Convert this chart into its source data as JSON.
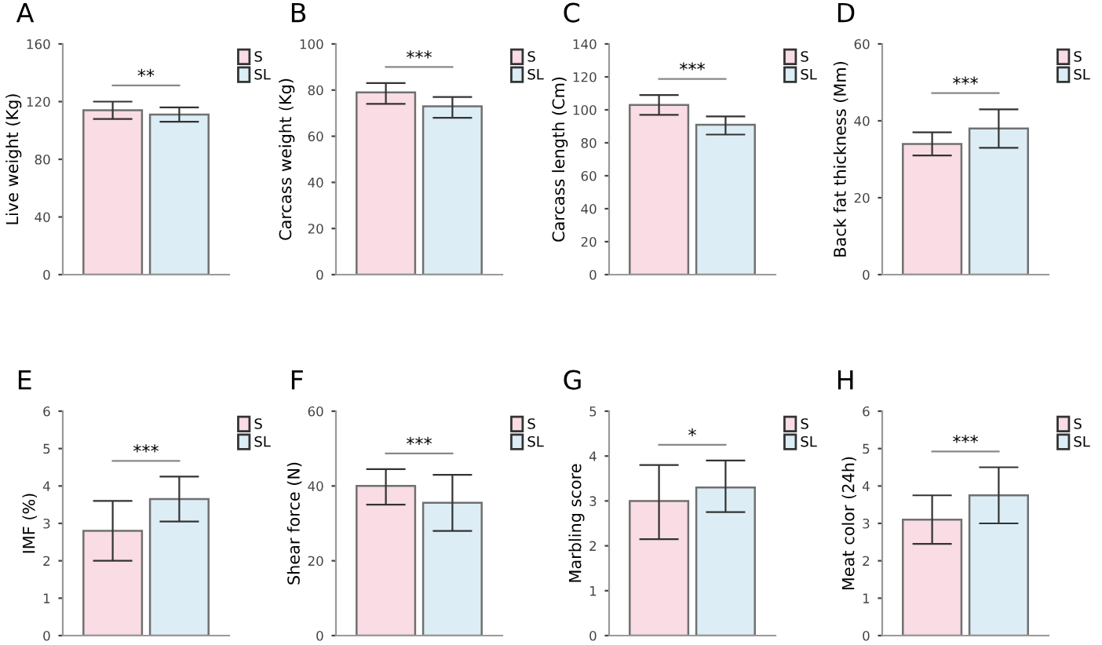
{
  "chart_data": [
    {
      "type": "bar",
      "title": "A",
      "ylabel": "Live weight (Kg)",
      "categories": [
        null
      ],
      "ylim": [
        0,
        160
      ],
      "yticks": [
        0,
        40,
        80,
        120,
        160
      ],
      "grid": false,
      "legend": "right",
      "annotations": [
        "**"
      ],
      "series": [
        {
          "name": "S",
          "color": "#f9dce4",
          "values": [
            114
          ],
          "errors": [
            [
              108,
              120
            ]
          ]
        },
        {
          "name": "SL",
          "color": "#dcedf5",
          "values": [
            111
          ],
          "errors": [
            [
              106,
              116
            ]
          ]
        }
      ]
    },
    {
      "type": "bar",
      "title": "B",
      "ylabel": "Carcass weight (Kg)",
      "categories": [
        null
      ],
      "ylim": [
        0,
        100
      ],
      "yticks": [
        0,
        20,
        40,
        60,
        80,
        100
      ],
      "grid": false,
      "legend": "right",
      "annotations": [
        "***"
      ],
      "series": [
        {
          "name": "S",
          "color": "#f9dce4",
          "values": [
            79
          ],
          "errors": [
            [
              74,
              83
            ]
          ]
        },
        {
          "name": "SL",
          "color": "#dcedf5",
          "values": [
            73
          ],
          "errors": [
            [
              68,
              77
            ]
          ]
        }
      ]
    },
    {
      "type": "bar",
      "title": "C",
      "ylabel": "Carcass length (Cm)",
      "categories": [
        null
      ],
      "ylim": [
        0,
        140
      ],
      "yticks": [
        0,
        20,
        40,
        60,
        80,
        100,
        120,
        140
      ],
      "grid": false,
      "legend": "right",
      "annotations": [
        "***"
      ],
      "series": [
        {
          "name": "S",
          "color": "#f9dce4",
          "values": [
            103
          ],
          "errors": [
            [
              97,
              109
            ]
          ]
        },
        {
          "name": "SL",
          "color": "#dcedf5",
          "values": [
            91
          ],
          "errors": [
            [
              85,
              96
            ]
          ]
        }
      ]
    },
    {
      "type": "bar",
      "title": "D",
      "ylabel": "Back fat thickness (Mm)",
      "categories": [
        null
      ],
      "ylim": [
        0,
        60
      ],
      "yticks": [
        0,
        20,
        40,
        60
      ],
      "grid": false,
      "legend": "right",
      "annotations": [
        "***"
      ],
      "series": [
        {
          "name": "S",
          "color": "#f9dce4",
          "values": [
            34
          ],
          "errors": [
            [
              31,
              37
            ]
          ]
        },
        {
          "name": "SL",
          "color": "#dcedf5",
          "values": [
            38
          ],
          "errors": [
            [
              33,
              43
            ]
          ]
        }
      ]
    },
    {
      "type": "bar",
      "title": "E",
      "ylabel": "IMF (%)",
      "categories": [
        null
      ],
      "ylim": [
        0,
        6
      ],
      "yticks": [
        0,
        1,
        2,
        3,
        4,
        5,
        6
      ],
      "grid": false,
      "legend": "right",
      "annotations": [
        "***"
      ],
      "series": [
        {
          "name": "S",
          "color": "#f9dce4",
          "values": [
            2.8
          ],
          "errors": [
            [
              2.0,
              3.6
            ]
          ]
        },
        {
          "name": "SL",
          "color": "#dcedf5",
          "values": [
            3.65
          ],
          "errors": [
            [
              3.05,
              4.25
            ]
          ]
        }
      ]
    },
    {
      "type": "bar",
      "title": "F",
      "ylabel": "Shear force (N)",
      "categories": [
        null
      ],
      "ylim": [
        0,
        60
      ],
      "yticks": [
        0,
        20,
        40,
        60
      ],
      "grid": false,
      "legend": "right",
      "annotations": [
        "***"
      ],
      "series": [
        {
          "name": "S",
          "color": "#f9dce4",
          "values": [
            40
          ],
          "errors": [
            [
              35,
              44.5
            ]
          ]
        },
        {
          "name": "SL",
          "color": "#dcedf5",
          "values": [
            35.5
          ],
          "errors": [
            [
              28,
              43
            ]
          ]
        }
      ]
    },
    {
      "type": "bar",
      "title": "G",
      "ylabel": "Marbling score",
      "categories": [
        null
      ],
      "ylim": [
        0,
        5
      ],
      "yticks": [
        0,
        1,
        2,
        3,
        4,
        5
      ],
      "grid": false,
      "legend": "right",
      "annotations": [
        "*"
      ],
      "series": [
        {
          "name": "S",
          "color": "#f9dce4",
          "values": [
            3.0
          ],
          "errors": [
            [
              2.15,
              3.8
            ]
          ]
        },
        {
          "name": "SL",
          "color": "#dcedf5",
          "values": [
            3.3
          ],
          "errors": [
            [
              2.75,
              3.9
            ]
          ]
        }
      ]
    },
    {
      "type": "bar",
      "title": "H",
      "ylabel": "Meat color (24h)",
      "categories": [
        null
      ],
      "ylim": [
        0,
        6
      ],
      "yticks": [
        0,
        1,
        2,
        3,
        4,
        5,
        6
      ],
      "grid": false,
      "legend": "right",
      "annotations": [
        "***"
      ],
      "series": [
        {
          "name": "S",
          "color": "#f9dce4",
          "values": [
            3.1
          ],
          "errors": [
            [
              2.45,
              3.75
            ]
          ]
        },
        {
          "name": "SL",
          "color": "#dcedf5",
          "values": [
            3.75
          ],
          "errors": [
            [
              3.0,
              4.5
            ]
          ]
        }
      ]
    }
  ]
}
